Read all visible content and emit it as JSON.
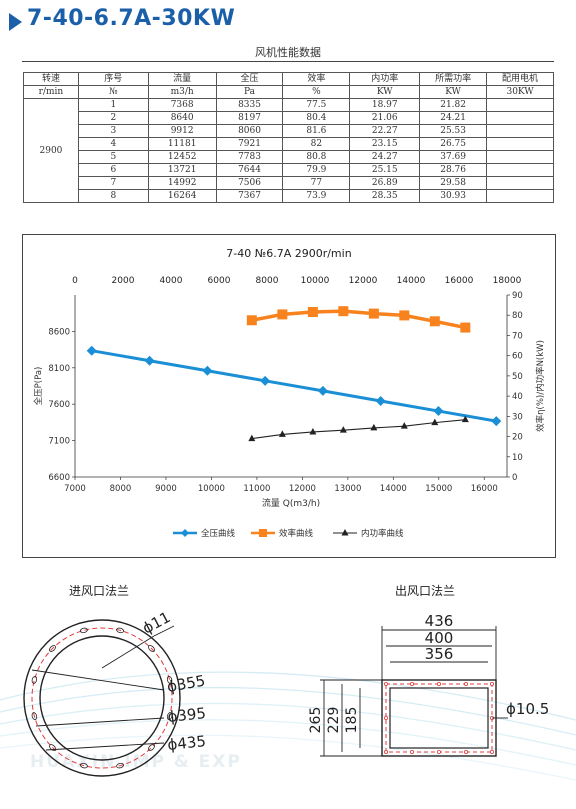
{
  "header": {
    "title": "7-40-6.7A-30KW",
    "subtitle": "风机性能数据"
  },
  "table": {
    "headers": [
      "转速",
      "序号",
      "流量",
      "全压",
      "效率",
      "内功率",
      "所需功率",
      "配用电机"
    ],
    "units": [
      "r/min",
      "№",
      "m3/h",
      "Pa",
      "%",
      "KW",
      "KW",
      "30KW"
    ],
    "speed": "2900",
    "rows": [
      [
        "1",
        "7368",
        "8335",
        "77.5",
        "18.97",
        "21.82"
      ],
      [
        "2",
        "8640",
        "8197",
        "80.4",
        "21.06",
        "24.21"
      ],
      [
        "3",
        "9912",
        "8060",
        "81.6",
        "22.27",
        "25.53"
      ],
      [
        "4",
        "11181",
        "7921",
        "82",
        "23.15",
        "26.75"
      ],
      [
        "5",
        "12452",
        "7783",
        "80.8",
        "24.27",
        "37.69"
      ],
      [
        "6",
        "13721",
        "7644",
        "79.9",
        "25.15",
        "28.76"
      ],
      [
        "7",
        "14992",
        "7506",
        "77",
        "26.89",
        "29.58"
      ],
      [
        "8",
        "16264",
        "7367",
        "73.9",
        "28.35",
        "30.93"
      ]
    ]
  },
  "chart_data": {
    "type": "line",
    "title": "7-40 №6.7A 2900r/min",
    "xlabel": "流量 Q(m3/h)",
    "ylabel_left": "全压P(Pa)",
    "ylabel_right": "效率η(%)/内功率N(kW)",
    "x_bottom_ticks": [
      7000,
      8000,
      9000,
      10000,
      11000,
      12000,
      13000,
      14000,
      15000,
      16000
    ],
    "x_top_ticks": [
      0,
      2000,
      4000,
      6000,
      8000,
      10000,
      12000,
      14000,
      16000,
      18000
    ],
    "y_left_ticks": [
      6600,
      7100,
      7600,
      8100,
      8600
    ],
    "y_right_ticks": [
      0,
      10,
      20,
      30,
      40,
      50,
      60,
      70,
      80,
      90
    ],
    "xlim_bottom": [
      7000,
      16500
    ],
    "xlim_top": [
      0,
      18000
    ],
    "ylim_left": [
      6600,
      9100
    ],
    "ylim_right": [
      0,
      90
    ],
    "series": [
      {
        "name": "全压曲线",
        "color": "#1a8fd6",
        "marker": "diamond",
        "axis": "bottom-left",
        "x": [
          7368,
          8640,
          9912,
          11181,
          12452,
          13721,
          14992,
          16264
        ],
        "y": [
          8335,
          8197,
          8060,
          7921,
          7783,
          7644,
          7506,
          7367
        ]
      },
      {
        "name": "效率曲线",
        "color": "#f7821e",
        "marker": "square",
        "axis": "top-right",
        "x": [
          7368,
          8640,
          9912,
          11181,
          12452,
          13721,
          14992,
          16264
        ],
        "y": [
          77.5,
          80.4,
          81.6,
          82,
          80.8,
          79.9,
          77,
          73.9
        ]
      },
      {
        "name": "内功率曲线",
        "color": "#222222",
        "marker": "triangle",
        "axis": "top-right",
        "x": [
          7368,
          8640,
          9912,
          11181,
          12452,
          13721,
          14992,
          16264
        ],
        "y": [
          18.97,
          21.06,
          22.27,
          23.15,
          24.27,
          25.15,
          26.89,
          28.35
        ]
      }
    ],
    "legend_position": "bottom-center",
    "grid": false
  },
  "flanges": {
    "inlet_title": "进风口法兰",
    "outlet_title": "出风口法兰",
    "inlet_dims": [
      "ϕ11",
      "ϕ355",
      "ϕ395",
      "ϕ435"
    ],
    "outlet_dims": {
      "w1": "436",
      "w2": "400",
      "w3": "356",
      "h1": "265",
      "h2": "229",
      "h3": "185",
      "hole": "ϕ10.5"
    }
  },
  "watermark": {
    "text": "HUAXIN IMP & EXP"
  }
}
